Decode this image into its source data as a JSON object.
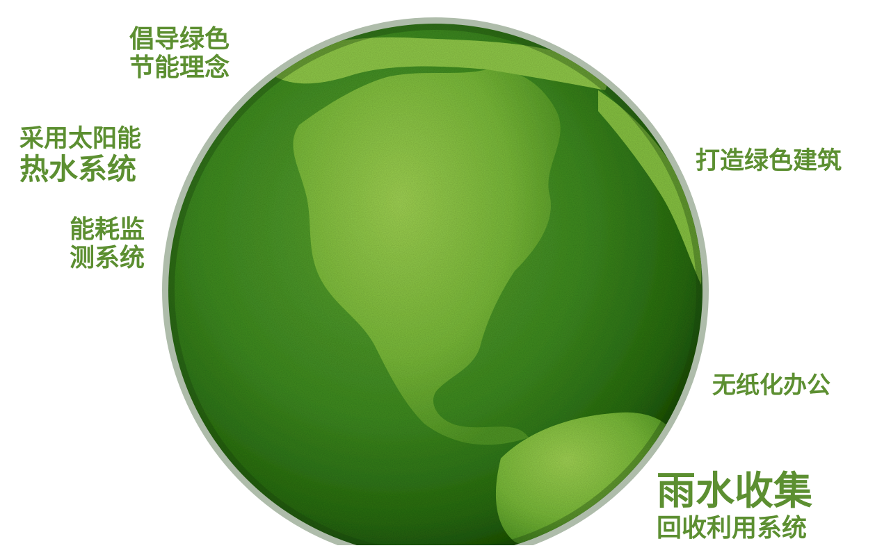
{
  "labels": {
    "green_concept": [
      "倡导绿色",
      "节能理念"
    ],
    "solar": [
      "采用太阳能",
      "热水系统"
    ],
    "energy_monitor": [
      "能耗监",
      "测系统"
    ],
    "green_building": "打造绿色建筑",
    "paperless": "无纸化办公",
    "rain": [
      "雨水收集",
      "回收利用系统"
    ]
  },
  "colors": {
    "text": "#5c8f31",
    "grass_light": "#8cc63f",
    "grass_mid": "#4f9a2a",
    "grass_dark": "#1e5a12"
  }
}
